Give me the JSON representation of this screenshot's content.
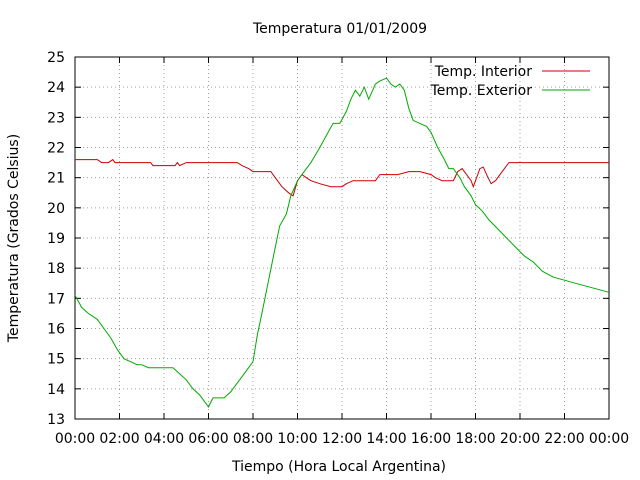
{
  "chart_data": {
    "type": "line",
    "title": "Temperatura 01/01/2009",
    "xlabel": "Tiempo (Hora Local Argentina)",
    "ylabel": "Temperatura (Grados Celsius)",
    "x_ticks": [
      "00:00",
      "02:00",
      "04:00",
      "06:00",
      "08:00",
      "10:00",
      "12:00",
      "14:00",
      "16:00",
      "18:00",
      "20:00",
      "22:00",
      "00:00"
    ],
    "xlim": [
      0,
      24
    ],
    "ylim": [
      13,
      25
    ],
    "y_ticks": [
      13,
      14,
      15,
      16,
      17,
      18,
      19,
      20,
      21,
      22,
      23,
      24,
      25
    ],
    "grid": true,
    "legend": "top-right",
    "series": [
      {
        "name": "Temp. Interior",
        "color": "#cc0000",
        "points": [
          [
            0,
            21.6
          ],
          [
            0.5,
            21.6
          ],
          [
            1,
            21.6
          ],
          [
            1.2,
            21.5
          ],
          [
            1.5,
            21.5
          ],
          [
            1.7,
            21.6
          ],
          [
            1.8,
            21.5
          ],
          [
            2,
            21.5
          ],
          [
            2.5,
            21.5
          ],
          [
            3,
            21.5
          ],
          [
            3.4,
            21.5
          ],
          [
            3.5,
            21.4
          ],
          [
            4,
            21.4
          ],
          [
            4.5,
            21.4
          ],
          [
            4.6,
            21.5
          ],
          [
            4.7,
            21.4
          ],
          [
            5,
            21.5
          ],
          [
            5.5,
            21.5
          ],
          [
            6,
            21.5
          ],
          [
            6.5,
            21.5
          ],
          [
            7,
            21.5
          ],
          [
            7.3,
            21.5
          ],
          [
            7.5,
            21.4
          ],
          [
            7.8,
            21.3
          ],
          [
            8,
            21.2
          ],
          [
            8.5,
            21.2
          ],
          [
            8.8,
            21.2
          ],
          [
            9,
            21
          ],
          [
            9.3,
            20.7
          ],
          [
            9.6,
            20.5
          ],
          [
            9.8,
            20.4
          ],
          [
            10,
            20.9
          ],
          [
            10.2,
            21.1
          ],
          [
            10.4,
            21
          ],
          [
            10.6,
            20.9
          ],
          [
            11,
            20.8
          ],
          [
            11.5,
            20.7
          ],
          [
            12,
            20.7
          ],
          [
            12.2,
            20.8
          ],
          [
            12.5,
            20.9
          ],
          [
            13,
            20.9
          ],
          [
            13.5,
            20.9
          ],
          [
            13.7,
            21.1
          ],
          [
            14,
            21.1
          ],
          [
            14.5,
            21.1
          ],
          [
            15,
            21.2
          ],
          [
            15.5,
            21.2
          ],
          [
            16,
            21.1
          ],
          [
            16.2,
            21
          ],
          [
            16.5,
            20.9
          ],
          [
            17,
            20.9
          ],
          [
            17.2,
            21.2
          ],
          [
            17.4,
            21.3
          ],
          [
            17.6,
            21.1
          ],
          [
            17.8,
            20.9
          ],
          [
            17.9,
            20.7
          ],
          [
            18,
            20.9
          ],
          [
            18.2,
            21.3
          ],
          [
            18.35,
            21.35
          ],
          [
            18.5,
            21.1
          ],
          [
            18.7,
            20.8
          ],
          [
            18.9,
            20.9
          ],
          [
            19.2,
            21.2
          ],
          [
            19.5,
            21.5
          ],
          [
            20,
            21.5
          ],
          [
            21,
            21.5
          ],
          [
            22,
            21.5
          ],
          [
            23,
            21.5
          ],
          [
            24,
            21.5
          ]
        ]
      },
      {
        "name": "Temp. Exterior",
        "color": "#00aa00",
        "points": [
          [
            0,
            17.1
          ],
          [
            0.3,
            16.7
          ],
          [
            0.6,
            16.5
          ],
          [
            1,
            16.3
          ],
          [
            1.3,
            16
          ],
          [
            1.6,
            15.7
          ],
          [
            1.9,
            15.3
          ],
          [
            2.2,
            15
          ],
          [
            2.5,
            14.9
          ],
          [
            2.8,
            14.8
          ],
          [
            3,
            14.8
          ],
          [
            3.3,
            14.7
          ],
          [
            3.6,
            14.7
          ],
          [
            4,
            14.7
          ],
          [
            4.4,
            14.7
          ],
          [
            4.7,
            14.5
          ],
          [
            5,
            14.3
          ],
          [
            5.3,
            14
          ],
          [
            5.6,
            13.8
          ],
          [
            5.8,
            13.6
          ],
          [
            6,
            13.4
          ],
          [
            6.2,
            13.7
          ],
          [
            6.4,
            13.7
          ],
          [
            6.7,
            13.7
          ],
          [
            7,
            13.9
          ],
          [
            7.2,
            14.1
          ],
          [
            7.5,
            14.4
          ],
          [
            7.8,
            14.7
          ],
          [
            8,
            14.9
          ],
          [
            8.2,
            15.8
          ],
          [
            8.4,
            16.5
          ],
          [
            8.7,
            17.6
          ],
          [
            9,
            18.7
          ],
          [
            9.2,
            19.4
          ],
          [
            9.5,
            19.8
          ],
          [
            9.7,
            20.4
          ],
          [
            10,
            20.9
          ],
          [
            10.3,
            21.2
          ],
          [
            10.6,
            21.5
          ],
          [
            11,
            22
          ],
          [
            11.3,
            22.4
          ],
          [
            11.6,
            22.8
          ],
          [
            11.9,
            22.8
          ],
          [
            12.2,
            23.2
          ],
          [
            12.4,
            23.6
          ],
          [
            12.6,
            23.9
          ],
          [
            12.8,
            23.7
          ],
          [
            13,
            24
          ],
          [
            13.2,
            23.6
          ],
          [
            13.5,
            24.1
          ],
          [
            13.7,
            24.2
          ],
          [
            14,
            24.3
          ],
          [
            14.2,
            24.1
          ],
          [
            14.4,
            24
          ],
          [
            14.6,
            24.1
          ],
          [
            14.8,
            23.9
          ],
          [
            15,
            23.3
          ],
          [
            15.2,
            22.9
          ],
          [
            15.5,
            22.8
          ],
          [
            15.8,
            22.7
          ],
          [
            16,
            22.5
          ],
          [
            16.3,
            22
          ],
          [
            16.6,
            21.6
          ],
          [
            16.8,
            21.3
          ],
          [
            17,
            21.3
          ],
          [
            17.3,
            21
          ],
          [
            17.5,
            20.7
          ],
          [
            17.8,
            20.4
          ],
          [
            18,
            20.1
          ],
          [
            18.3,
            19.9
          ],
          [
            18.6,
            19.6
          ],
          [
            19,
            19.3
          ],
          [
            19.4,
            19
          ],
          [
            19.8,
            18.7
          ],
          [
            20.2,
            18.4
          ],
          [
            20.6,
            18.2
          ],
          [
            21,
            17.9
          ],
          [
            21.5,
            17.7
          ],
          [
            22,
            17.6
          ],
          [
            22.5,
            17.5
          ],
          [
            23,
            17.4
          ],
          [
            23.5,
            17.3
          ],
          [
            24,
            17.2
          ]
        ]
      }
    ]
  }
}
